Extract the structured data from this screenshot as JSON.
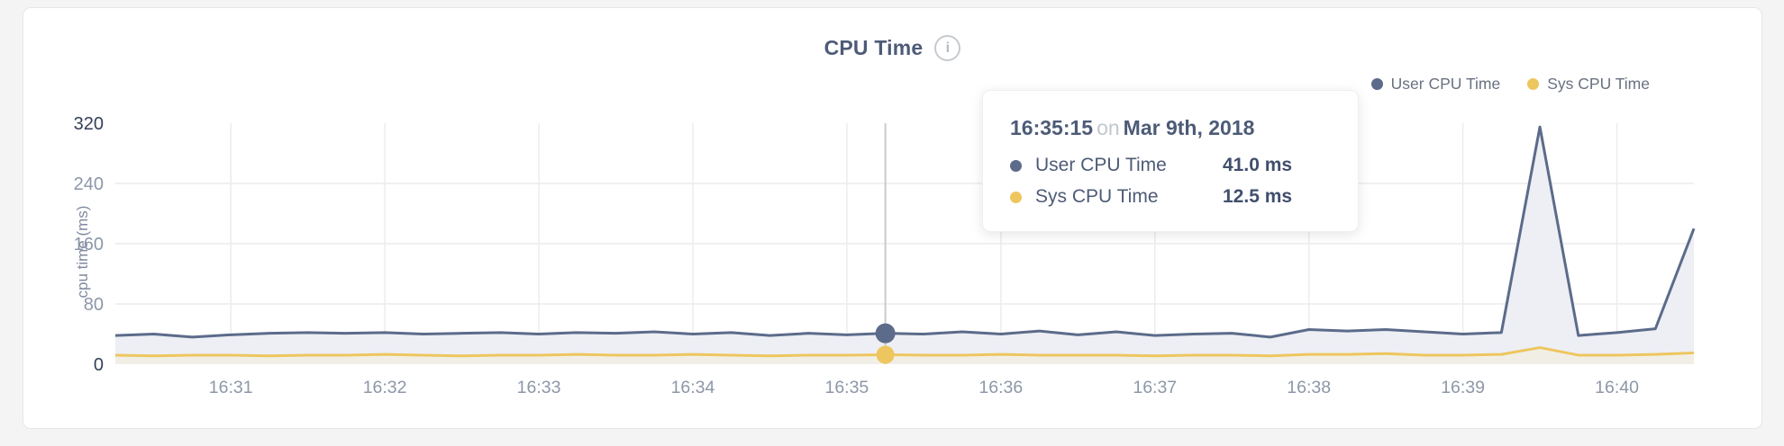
{
  "header": {
    "title": "CPU Time",
    "info_icon_glyph": "i"
  },
  "legend": {
    "items": [
      {
        "label": "User CPU Time",
        "color": "#5c6b8a"
      },
      {
        "label": "Sys CPU Time",
        "color": "#eec65f"
      }
    ]
  },
  "tooltip": {
    "time": "16:35:15",
    "conjunction": "on",
    "date": "Mar 9th, 2018",
    "rows": [
      {
        "label": "User CPU Time",
        "value": "41.0 ms",
        "color": "#5c6b8a"
      },
      {
        "label": "Sys CPU Time",
        "value": "12.5 ms",
        "color": "#eec65f"
      }
    ]
  },
  "chart_data": {
    "type": "area",
    "title": "CPU Time",
    "xlabel": "",
    "ylabel": "cpu time (ms)",
    "ylim": [
      0,
      320
    ],
    "yticks": [
      0,
      80,
      160,
      240,
      320
    ],
    "xticks": [
      "16:31",
      "16:32",
      "16:33",
      "16:34",
      "16:35",
      "16:36",
      "16:37",
      "16:38",
      "16:39",
      "16:40"
    ],
    "grid": true,
    "legend_position": "top-right",
    "x": [
      "16:30:15",
      "16:30:30",
      "16:30:45",
      "16:31:00",
      "16:31:15",
      "16:31:30",
      "16:31:45",
      "16:32:00",
      "16:32:15",
      "16:32:30",
      "16:32:45",
      "16:33:00",
      "16:33:15",
      "16:33:30",
      "16:33:45",
      "16:34:00",
      "16:34:15",
      "16:34:30",
      "16:34:45",
      "16:35:00",
      "16:35:15",
      "16:35:30",
      "16:35:45",
      "16:36:00",
      "16:36:15",
      "16:36:30",
      "16:36:45",
      "16:37:00",
      "16:37:15",
      "16:37:30",
      "16:37:45",
      "16:38:00",
      "16:38:15",
      "16:38:30",
      "16:38:45",
      "16:39:00",
      "16:39:15",
      "16:39:30",
      "16:39:45",
      "16:40:00",
      "16:40:15",
      "16:40:30"
    ],
    "series": [
      {
        "name": "User CPU Time",
        "color": "#5c6b8a",
        "fill": "#edeff4",
        "values": [
          38,
          40,
          36,
          39,
          41,
          42,
          41,
          42,
          40,
          41,
          42,
          40,
          42,
          41,
          43,
          40,
          42,
          38,
          41,
          39,
          41,
          40,
          43,
          40,
          44,
          39,
          43,
          38,
          40,
          41,
          36,
          46,
          44,
          46,
          43,
          40,
          42,
          315,
          38,
          42,
          47,
          180
        ]
      },
      {
        "name": "Sys CPU Time",
        "color": "#eec65f",
        "fill": "#f1efe5",
        "values": [
          12,
          11,
          12,
          12,
          11,
          12,
          12,
          13,
          12,
          11,
          12,
          12,
          13,
          12,
          12,
          13,
          12,
          11,
          12,
          12,
          12.5,
          12,
          12,
          13,
          12,
          12,
          12,
          11,
          12,
          12,
          11,
          13,
          13,
          14,
          12,
          12,
          13,
          22,
          12,
          12,
          13,
          15
        ]
      }
    ],
    "selected": {
      "x": "16:35:15",
      "values": [
        41.0,
        12.5
      ]
    }
  }
}
